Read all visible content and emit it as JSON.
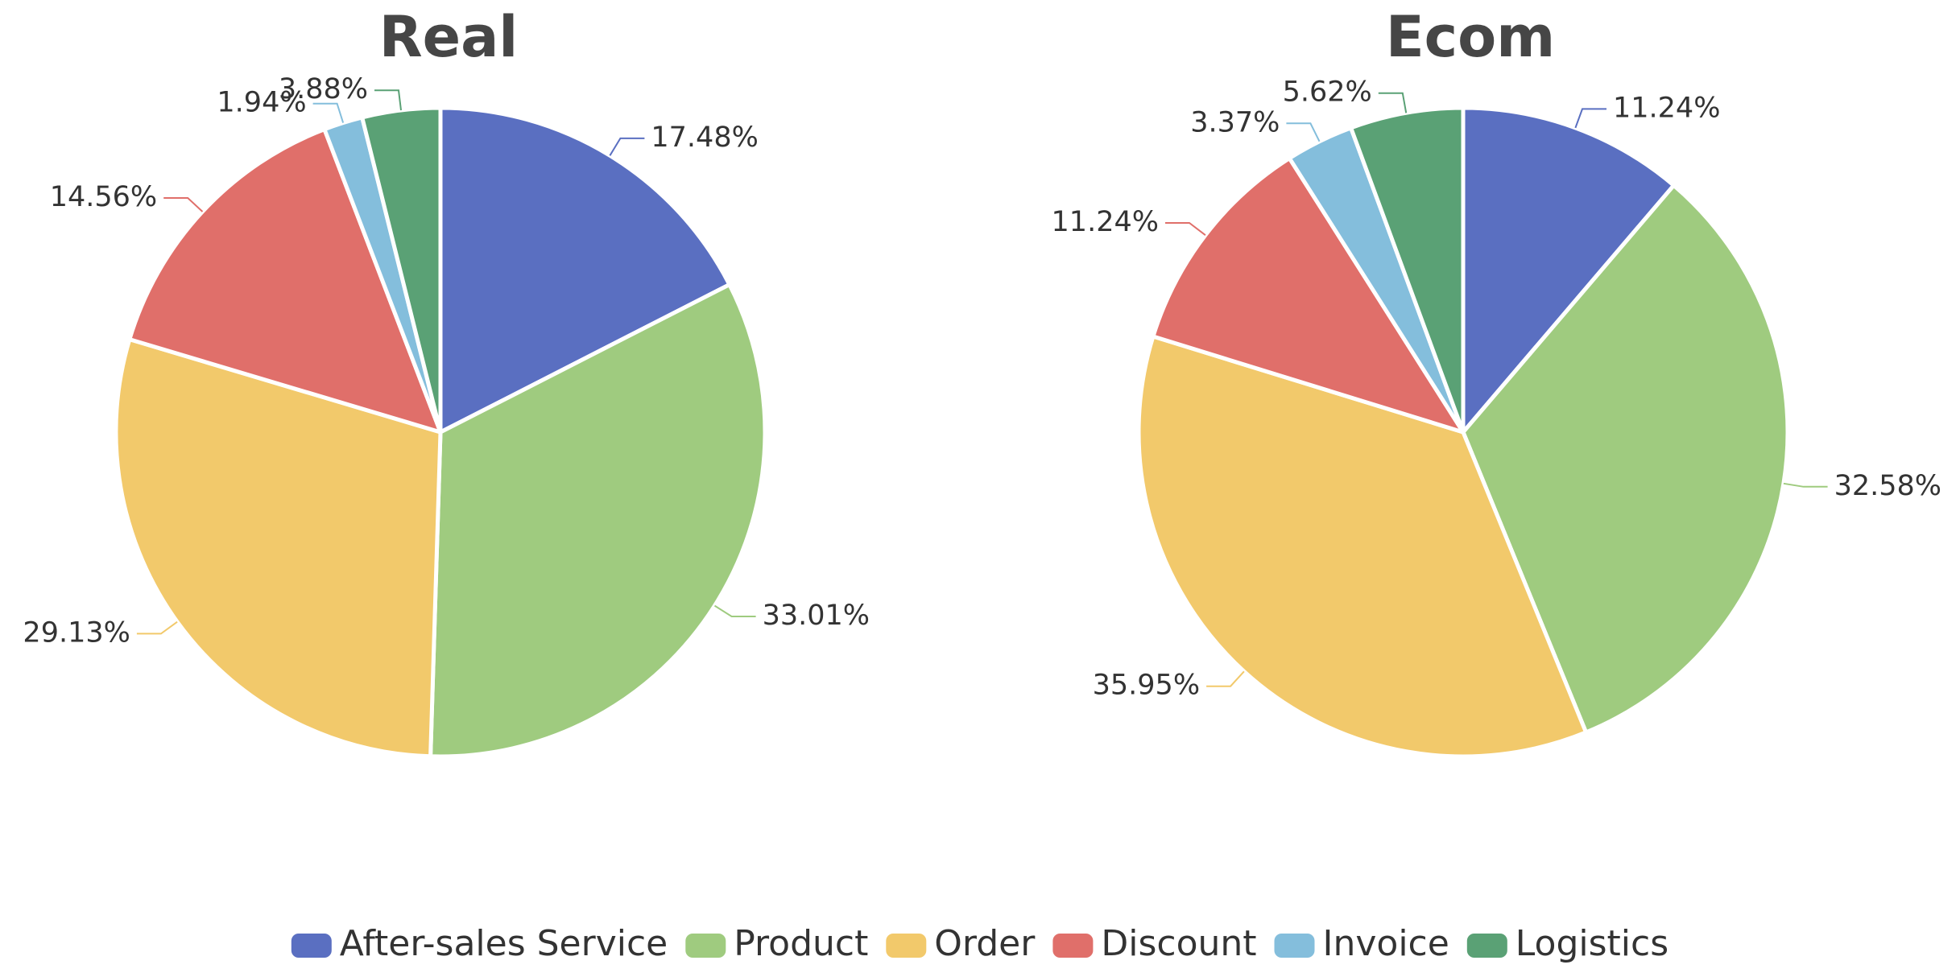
{
  "chart_data": {
    "type": "pie",
    "categories": [
      "After-sales Service",
      "Product",
      "Order",
      "Discount",
      "Invoice",
      "Logistics"
    ],
    "colors": [
      "#5a6fc1",
      "#9fcb7f",
      "#f2c96b",
      "#e06f6a",
      "#84bedc",
      "#5aa175"
    ],
    "legend_position": "bottom",
    "pies": [
      {
        "title": "Real",
        "values": [
          17.48,
          33.01,
          29.13,
          14.56,
          1.94,
          3.88
        ],
        "labels": [
          "17.48%",
          "33.01%",
          "29.13%",
          "14.56%",
          "1.94%",
          "3.88%"
        ]
      },
      {
        "title": "Ecom",
        "values": [
          11.24,
          32.58,
          35.95,
          11.24,
          3.37,
          5.62
        ],
        "labels": [
          "11.24%",
          "32.58%",
          "35.95%",
          "11.24%",
          "3.37%",
          "5.62%"
        ]
      }
    ]
  }
}
